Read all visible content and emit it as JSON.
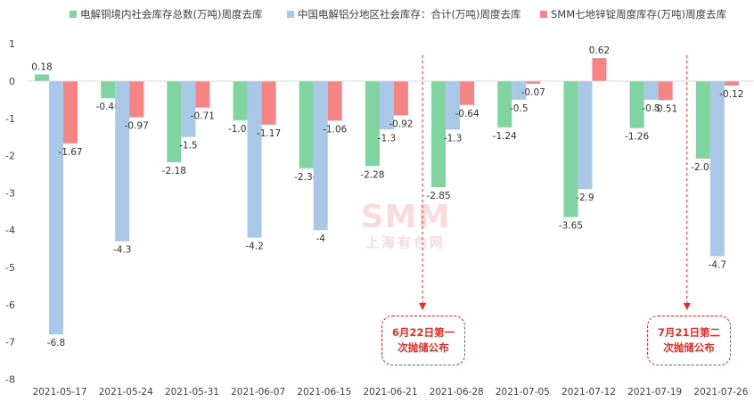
{
  "chart_data": {
    "type": "bar",
    "categories": [
      "2021-05-17",
      "2021-05-24",
      "2021-05-31",
      "2021-06-07",
      "2021-06-15",
      "2021-06-21",
      "2021-06-28",
      "2021-07-05",
      "2021-07-12",
      "2021-07-19",
      "2021-07-26"
    ],
    "series": [
      {
        "name": "电解铜境内社会库存总数(万吨)周度去库",
        "color": "#7fd4a0",
        "values": [
          0.18,
          -0.46,
          -2.18,
          -1.05,
          -2.34,
          -2.28,
          -2.85,
          -1.24,
          -3.65,
          -1.26,
          -2.08
        ],
        "labels": [
          "0.18",
          "-0.46",
          "-2.18",
          "-1.05",
          "-2.34",
          "-2.28",
          "-2.85",
          "-1.24",
          "-3.65",
          "-1.26",
          "-2.08"
        ]
      },
      {
        "name": "中国电解铝分地区社会库存：合计(万吨)周度去库",
        "color": "#a9c8e8",
        "values": [
          -6.8,
          -4.3,
          -1.5,
          -4.2,
          -4.0,
          -1.3,
          -1.3,
          -0.5,
          -2.9,
          -0.5,
          -4.7
        ],
        "labels": [
          "-6.8",
          "-4.3",
          "-1.5",
          "-4.2",
          "-4",
          "-1.3",
          "-1.3",
          "-0.5",
          "-2.9",
          "-0.5",
          "-4.7"
        ]
      },
      {
        "name": "SMM七地锌锭周度库存(万吨)周度去库",
        "color": "#f78484",
        "values": [
          -1.67,
          -0.97,
          -0.71,
          -1.17,
          -1.06,
          -0.92,
          -0.64,
          -0.07,
          0.62,
          -0.51,
          -0.12
        ],
        "labels": [
          "-1.67",
          "-0.97",
          "-0.71",
          "-1.17",
          "-1.06",
          "-0.92",
          "-0.64",
          "-0.07",
          "0.62",
          "-0.51",
          "-0.12"
        ]
      }
    ],
    "yticks": [
      "1",
      "0",
      "-1",
      "-2",
      "-3",
      "-4",
      "-5",
      "-6",
      "-7",
      "-8"
    ],
    "ylim": [
      -8,
      1
    ],
    "grid": false,
    "legend": "top",
    "annotations": [
      {
        "category": "2021-06-28",
        "text_line1": "6月22日第一",
        "text_line2": "次抛储公布"
      },
      {
        "category": "2021-07-26",
        "text_line1": "7月21日第二",
        "text_line2": "次抛储公布"
      }
    ],
    "watermark": {
      "line1": "SMM",
      "line2": "上海有色网"
    }
  }
}
